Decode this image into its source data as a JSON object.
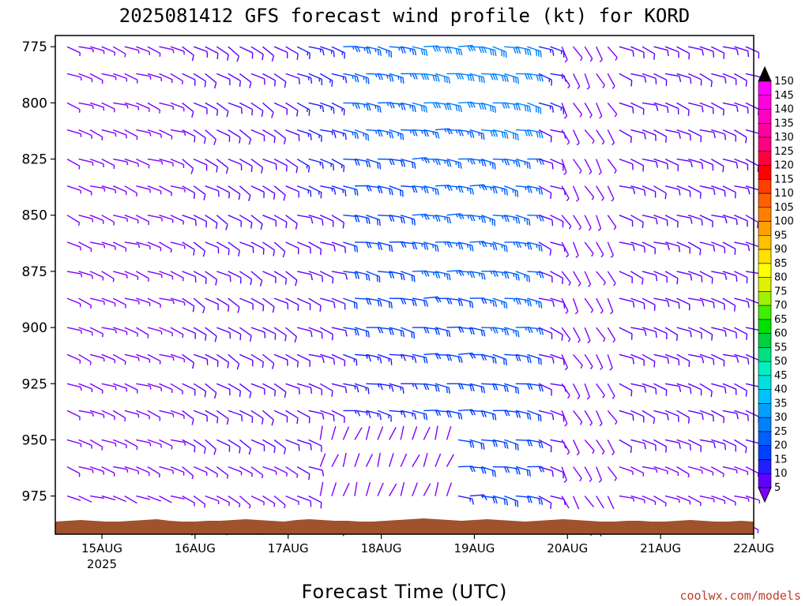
{
  "chart_data": {
    "type": "wind_barb_time_height",
    "title": "2025081412 GFS forecast wind profile (kt) for KORD",
    "xlabel": "Forecast Time (UTC)",
    "credit": "coolwx.com/models",
    "y_axis": {
      "quantity": "pressure",
      "ticks": [
        775,
        800,
        825,
        850,
        875,
        900,
        925,
        950,
        975
      ],
      "range": [
        770,
        992
      ],
      "inverted": true
    },
    "x_axis": {
      "ticks": [
        "15AUG",
        "16AUG",
        "17AUG",
        "18AUG",
        "19AUG",
        "20AUG",
        "21AUG",
        "22AUG"
      ],
      "sublabel": "2025",
      "start": "2025-08-14 12Z",
      "end": "2025-08-22 00Z"
    },
    "colorbar": {
      "levels": [
        5,
        10,
        15,
        20,
        25,
        30,
        35,
        40,
        45,
        50,
        55,
        60,
        65,
        70,
        75,
        80,
        85,
        90,
        95,
        100,
        105,
        110,
        115,
        120,
        125,
        130,
        135,
        140,
        145,
        150
      ],
      "colors": [
        "#8000ff",
        "#6000ff",
        "#2020ff",
        "#0040ff",
        "#0060ff",
        "#0080ff",
        "#00a0ff",
        "#00c0ff",
        "#00e0e0",
        "#00f0c0",
        "#00e080",
        "#00d040",
        "#00e000",
        "#40f000",
        "#a0f000",
        "#e0f000",
        "#ffff00",
        "#ffe000",
        "#ffc000",
        "#ffa000",
        "#ff8000",
        "#ff6000",
        "#ff4000",
        "#ff0000",
        "#ff0040",
        "#ff0080",
        "#ff00a0",
        "#ff00c0",
        "#ff00e0",
        "#ff00ff"
      ],
      "arrow_low_color": "#8000ff",
      "arrow_high_color": "#000000"
    },
    "terrain_color": "#a0522d",
    "levels": [
      775,
      787,
      800,
      812,
      825,
      837,
      850,
      862,
      875,
      887,
      900,
      912,
      925,
      937,
      950,
      962,
      975,
      987
    ],
    "time_steps": 60,
    "segments": [
      {
        "t0": 0,
        "t1": 10,
        "dir": 290,
        "spd": 6
      },
      {
        "t0": 10,
        "t1": 20,
        "dir": 300,
        "spd": 12
      },
      {
        "t0": 20,
        "t1": 24,
        "dir": 290,
        "spd": 14
      },
      {
        "t0": 24,
        "t1": 30,
        "dir": 280,
        "spd": 22
      },
      {
        "t0": 30,
        "t1": 36,
        "dir": 275,
        "spd": 26
      },
      {
        "t0": 36,
        "t1": 41,
        "dir": 280,
        "spd": 27
      },
      {
        "t0": 41,
        "t1": 43,
        "dir": 290,
        "spd": 13
      },
      {
        "t0": 43,
        "t1": 48,
        "dir": 330,
        "spd": 6
      },
      {
        "t0": 48,
        "t1": 60,
        "dir": 290,
        "spd": 12
      }
    ],
    "low_level_calm_segment": {
      "t0": 22,
      "t1": 34,
      "dir": 200,
      "spd": 5,
      "levels": [
        950,
        962,
        975
      ]
    }
  }
}
